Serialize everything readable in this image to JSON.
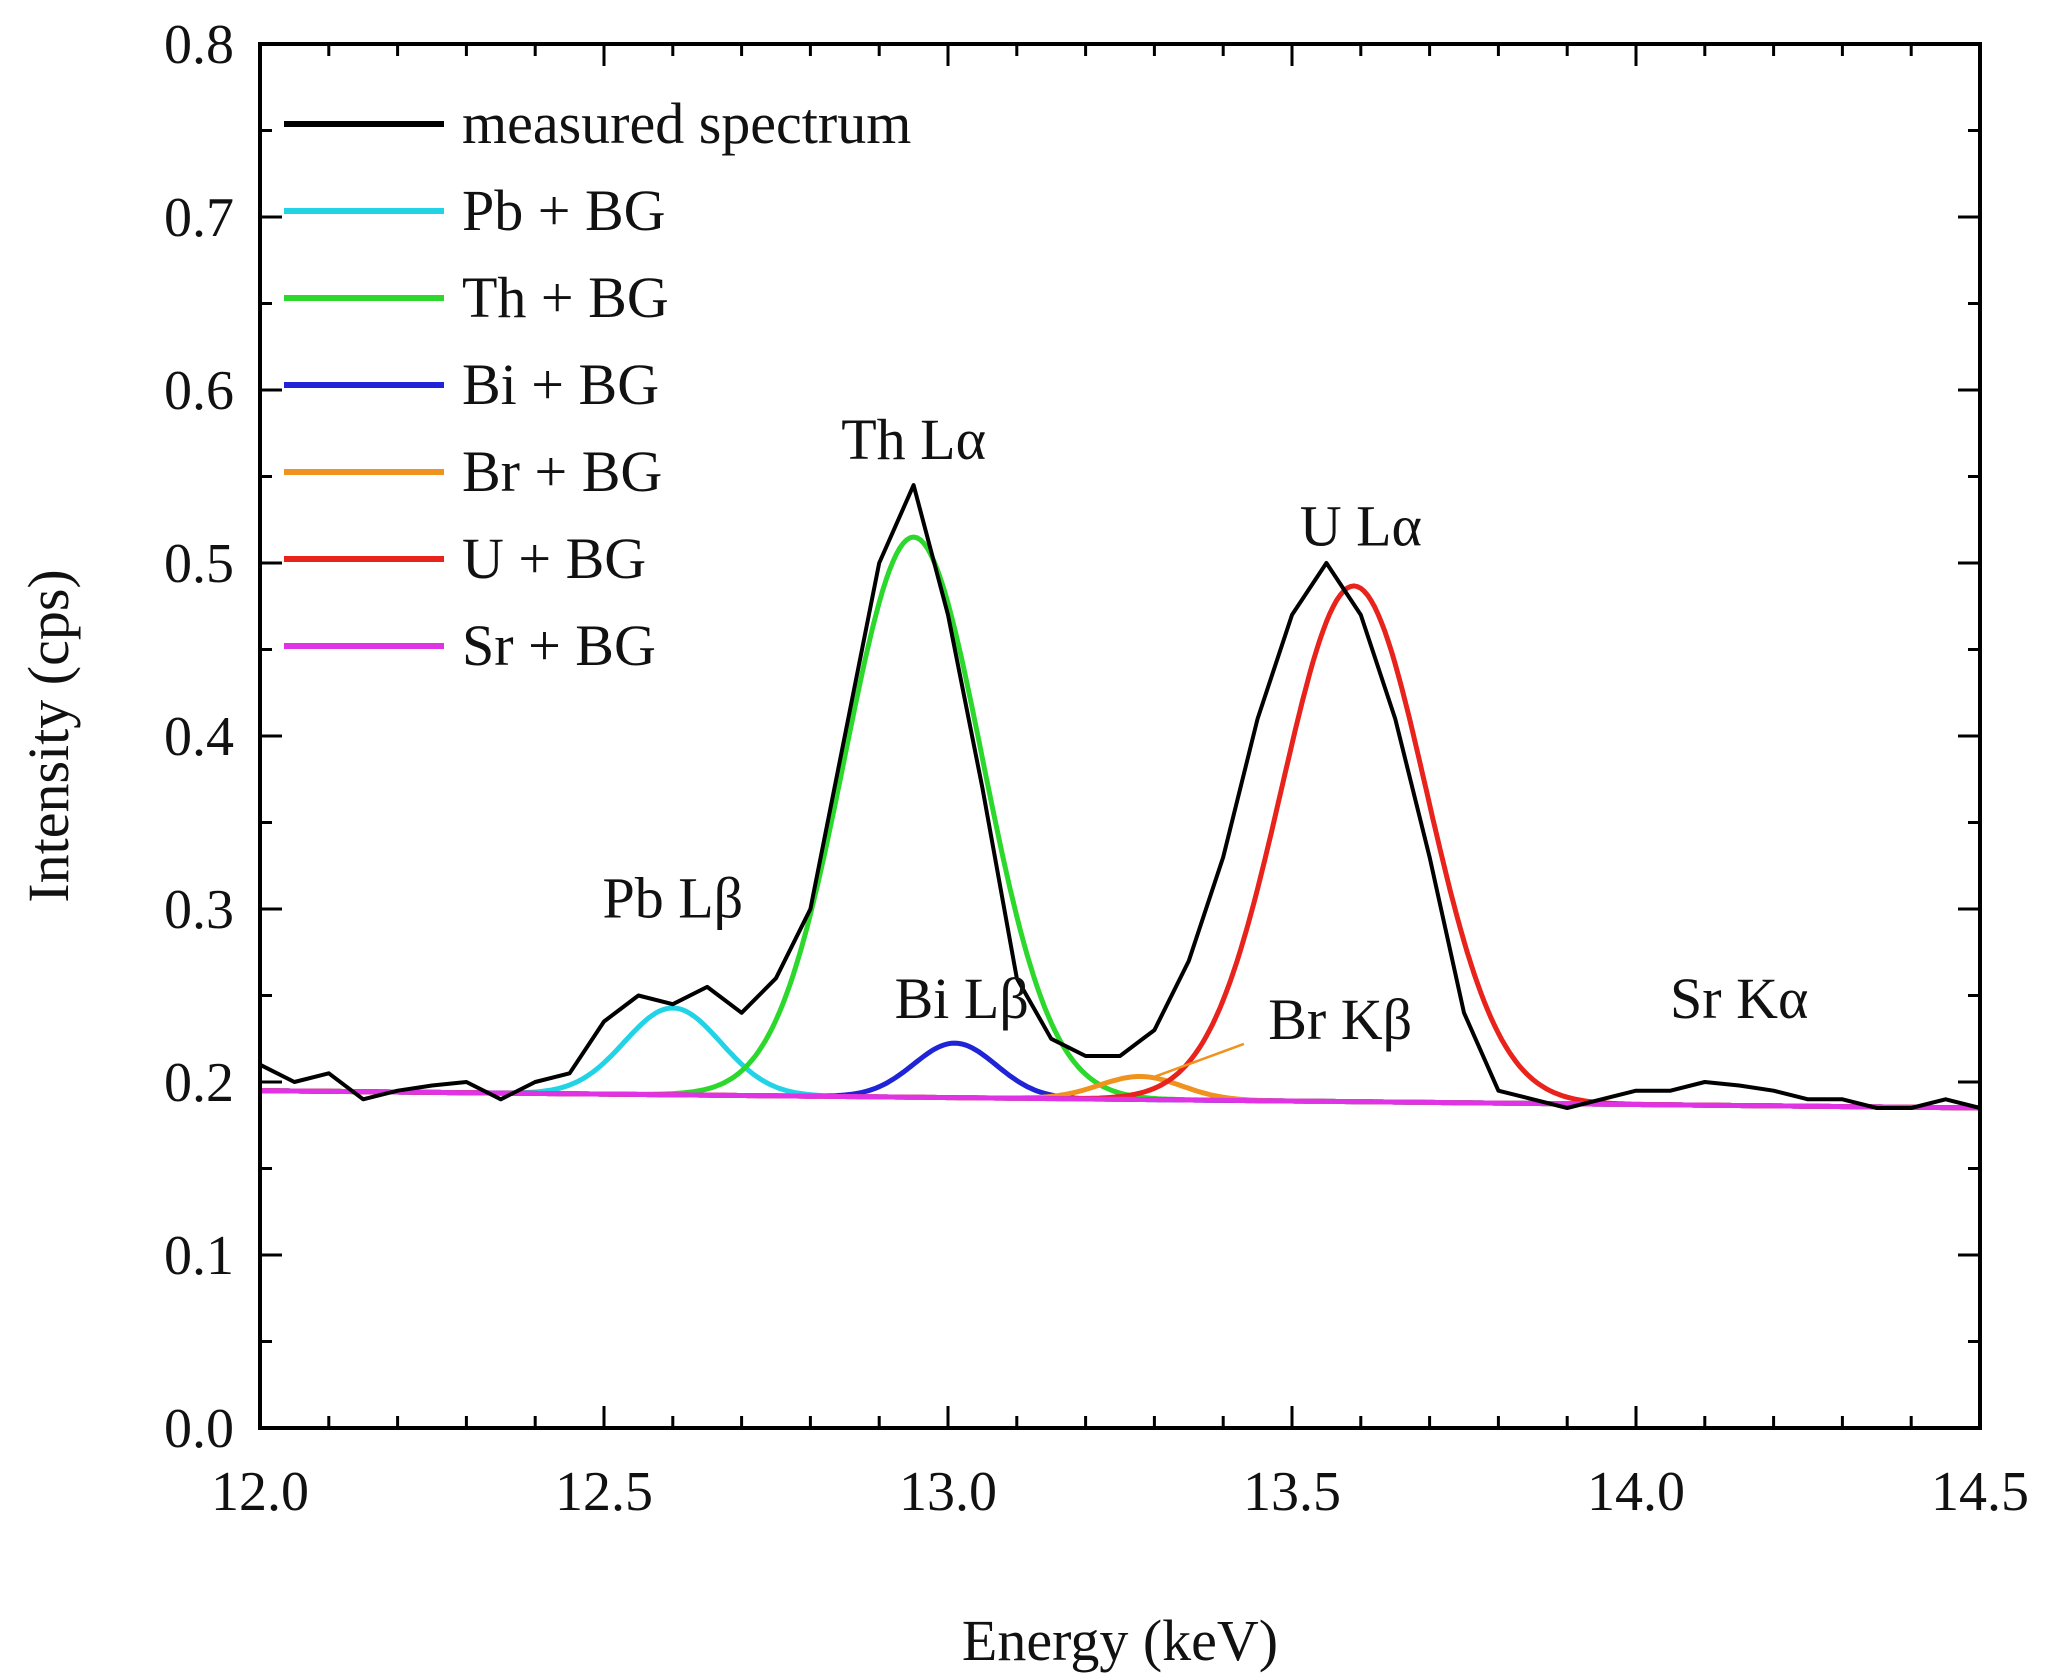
{
  "chart_data": {
    "type": "line",
    "xlabel": "Energy (keV)",
    "ylabel": "Intensity (cps)",
    "xlim": [
      12.0,
      14.5
    ],
    "ylim": [
      0.0,
      0.8
    ],
    "x_ticks": [
      "12.0",
      "12.5",
      "13.0",
      "13.5",
      "14.0",
      "14.5"
    ],
    "y_ticks": [
      "0.0",
      "0.1",
      "0.2",
      "0.3",
      "0.4",
      "0.5",
      "0.6",
      "0.7",
      "0.8"
    ],
    "grid": false,
    "legend_position": "top-left",
    "series": [
      {
        "name": "measured spectrum",
        "color": "#000000",
        "x": [
          12.0,
          12.05,
          12.1,
          12.15,
          12.2,
          12.25,
          12.3,
          12.35,
          12.4,
          12.45,
          12.5,
          12.55,
          12.6,
          12.65,
          12.7,
          12.75,
          12.8,
          12.85,
          12.9,
          12.95,
          13.0,
          13.05,
          13.1,
          13.15,
          13.2,
          13.25,
          13.3,
          13.35,
          13.4,
          13.45,
          13.5,
          13.55,
          13.6,
          13.65,
          13.7,
          13.75,
          13.8,
          13.85,
          13.9,
          13.95,
          14.0,
          14.05,
          14.1,
          14.15,
          14.2,
          14.25,
          14.3,
          14.35,
          14.4,
          14.45,
          14.5
        ],
        "values": [
          0.21,
          0.2,
          0.205,
          0.19,
          0.195,
          0.198,
          0.2,
          0.19,
          0.2,
          0.205,
          0.235,
          0.25,
          0.245,
          0.255,
          0.24,
          0.26,
          0.3,
          0.4,
          0.5,
          0.545,
          0.47,
          0.37,
          0.26,
          0.225,
          0.215,
          0.215,
          0.23,
          0.27,
          0.33,
          0.41,
          0.47,
          0.5,
          0.47,
          0.41,
          0.33,
          0.24,
          0.195,
          0.19,
          0.185,
          0.19,
          0.195,
          0.195,
          0.2,
          0.198,
          0.195,
          0.19,
          0.19,
          0.185,
          0.185,
          0.19,
          0.185
        ]
      },
      {
        "name": "Pb + BG",
        "color": "#22d3e6",
        "center": 12.6,
        "amplitude": 0.0502,
        "sigma": 0.07
      },
      {
        "name": "Th + BG",
        "color": "#2bd82b",
        "center": 12.95,
        "amplitude": 0.3238,
        "sigma": 0.1
      },
      {
        "name": "Bi + BG",
        "color": "#1f24d6",
        "center": 13.01,
        "amplitude": 0.0315,
        "sigma": 0.06
      },
      {
        "name": "Br + BG",
        "color": "#f0921e",
        "center": 13.28,
        "amplitude": 0.0133,
        "sigma": 0.06
      },
      {
        "name": "U + BG",
        "color": "#e8231c",
        "center": 13.59,
        "amplitude": 0.2981,
        "sigma": 0.105
      },
      {
        "name": "Sr + BG",
        "color": "#e033e6",
        "center": 14.1,
        "amplitude": 0.0,
        "sigma": 0.06
      }
    ],
    "background": {
      "x": [
        12.0,
        14.5
      ],
      "values": [
        0.195,
        0.185
      ]
    },
    "annotations": [
      {
        "text": "Th Lα",
        "x": 12.95,
        "y": 0.56
      },
      {
        "text": "U Lα",
        "x": 13.6,
        "y": 0.51
      },
      {
        "text": "Pb Lβ",
        "x": 12.6,
        "y": 0.295
      },
      {
        "text": "Bi Lβ",
        "x": 13.02,
        "y": 0.237
      },
      {
        "text": "Br Kβ",
        "x": 13.57,
        "y": 0.225
      },
      {
        "text": "Sr Kα",
        "x": 14.15,
        "y": 0.237
      }
    ]
  }
}
